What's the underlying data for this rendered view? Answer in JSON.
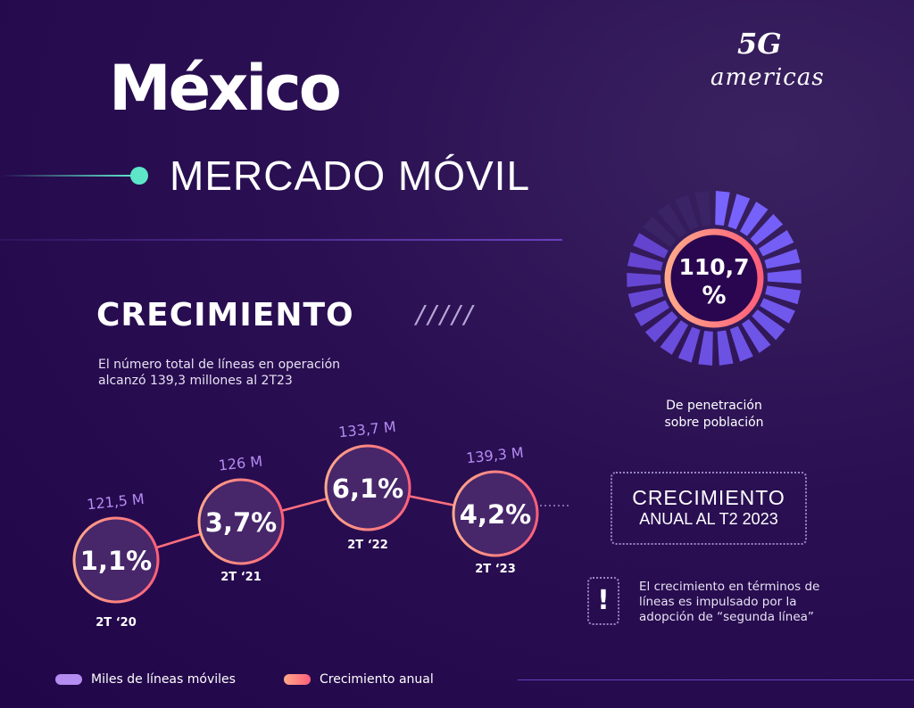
{
  "header": {
    "title": "México",
    "subtitle": "MERCADO MÓVIL",
    "logo_text": "5G americas"
  },
  "section": {
    "title": "CRECIMIENTO",
    "slashes": "/////",
    "description": "El número total de líneas en operación alcanzó 139,3 millones al 2T23"
  },
  "penetration": {
    "value": "110,7",
    "unit": "%",
    "label_line1": "De penetración",
    "label_line2": "sobre población"
  },
  "growth_box": {
    "line1": "CRECIMIENTO",
    "line2": "ANUAL AL T2 2023"
  },
  "note": {
    "icon": "!",
    "text": "El crecimiento en términos de líneas es impulsado por la adopción de “segunda línea”"
  },
  "legend": {
    "lines": "Miles de líneas móviles",
    "growth": "Crecimiento anual"
  },
  "colors": {
    "bubble": "#47266a",
    "stroke": "#ff6f7d",
    "lines_label": "#b48cf2",
    "accent": "#5ee6c8"
  },
  "chart_data": {
    "type": "line",
    "categories": [
      "2T '20",
      "2T '21",
      "2T '22",
      "2T '23"
    ],
    "series": [
      {
        "name": "Crecimiento anual",
        "values": [
          1.1,
          3.7,
          6.1,
          4.2
        ],
        "labels": [
          "1,1%",
          "3,7%",
          "6,1%",
          "4,2%"
        ]
      },
      {
        "name": "Miles de líneas móviles",
        "values": [
          121.5,
          126,
          133.7,
          139.3
        ],
        "labels": [
          "121,5 M",
          "126 M",
          "133,7 M",
          "139,3 M"
        ]
      }
    ],
    "tick_labels": [
      "2T ‘20",
      "2T ‘21",
      "2T ‘22",
      "2T ‘23"
    ]
  }
}
